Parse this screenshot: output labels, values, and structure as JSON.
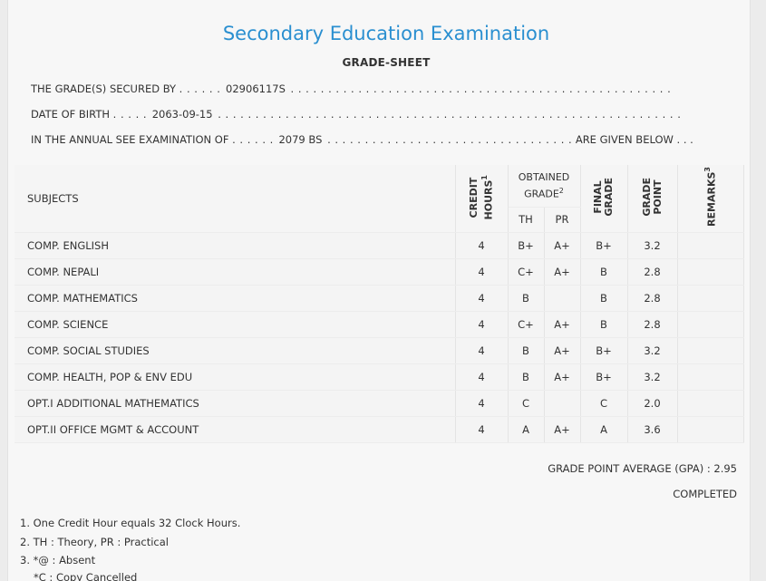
{
  "header": {
    "title": "Secondary Education Examination",
    "subtitle": "GRADE-SHEET"
  },
  "info": {
    "secured_prefix": "THE GRADE(S) SECURED BY",
    "secured_dots_lead": ". . . . . .",
    "symbol_no": "02906117S",
    "secured_dots_tail": ". . . . . . . . . . . . . . . . . . . . . . . . . . . . . . . . . . . . . . . . . . . . . . . . . . .",
    "dob_prefix": "DATE OF BIRTH",
    "dob_dots_lead": ". . . . .",
    "dob": "2063-09-15",
    "dob_dots_tail": ". . . . . . . . . . . . . . . . . . . . . . . . . . . . . . . . . . . . . . . . . . . . . . . . . . . . . . . . . . . . . .",
    "exam_prefix": "IN THE ANNUAL SEE EXAMINATION OF",
    "exam_dots_lead": ". . . . . .",
    "exam_year": "2079 BS",
    "exam_dots_mid": ". . . . . . . . . . . . . . . . . . . . . . . . . . . . . . . . .",
    "exam_suffix": "ARE GIVEN BELOW . . ."
  },
  "table": {
    "headers": {
      "subjects": "SUBJECTS",
      "credit_line1": "CREDIT",
      "credit_line2": "HOURS",
      "credit_sup": "1",
      "obtained_line1": "OBTAINED",
      "obtained_line2": "GRADE",
      "obtained_sup": "2",
      "th": "TH",
      "pr": "PR",
      "final_line1": "FINAL",
      "final_line2": "GRADE",
      "gp_line1": "GRADE",
      "gp_line2": "POINT",
      "remarks": "REMARKS",
      "remarks_sup": "3"
    },
    "rows": [
      {
        "subject": "COMP. ENGLISH",
        "credit": "4",
        "th": "B+",
        "pr": "A+",
        "final": "B+",
        "gp": "3.2",
        "remarks": ""
      },
      {
        "subject": "COMP. NEPALI",
        "credit": "4",
        "th": "C+",
        "pr": "A+",
        "final": "B",
        "gp": "2.8",
        "remarks": ""
      },
      {
        "subject": "COMP. MATHEMATICS",
        "credit": "4",
        "th": "B",
        "pr": "",
        "final": "B",
        "gp": "2.8",
        "remarks": ""
      },
      {
        "subject": "COMP. SCIENCE",
        "credit": "4",
        "th": "C+",
        "pr": "A+",
        "final": "B",
        "gp": "2.8",
        "remarks": ""
      },
      {
        "subject": "COMP. SOCIAL STUDIES",
        "credit": "4",
        "th": "B",
        "pr": "A+",
        "final": "B+",
        "gp": "3.2",
        "remarks": ""
      },
      {
        "subject": "COMP. HEALTH, POP & ENV EDU",
        "credit": "4",
        "th": "B",
        "pr": "A+",
        "final": "B+",
        "gp": "3.2",
        "remarks": ""
      },
      {
        "subject": "OPT.I ADDITIONAL MATHEMATICS",
        "credit": "4",
        "th": "C",
        "pr": "",
        "final": "C",
        "gp": "2.0",
        "remarks": ""
      },
      {
        "subject": "OPT.II OFFICE MGMT & ACCOUNT",
        "credit": "4",
        "th": "A",
        "pr": "A+",
        "final": "A",
        "gp": "3.6",
        "remarks": ""
      }
    ]
  },
  "summary": {
    "gpa_label": "GRADE POINT AVERAGE (GPA) : 2.95",
    "status": "COMPLETED"
  },
  "footnotes": [
    "1. One Credit Hour equals 32 Clock Hours.",
    "2. TH : Theory, PR : Practical",
    "3. *@ : Absent",
    "*C : Copy Cancelled"
  ],
  "colors": {
    "title": "#2a8fd0",
    "background": "#f7f7f7"
  }
}
